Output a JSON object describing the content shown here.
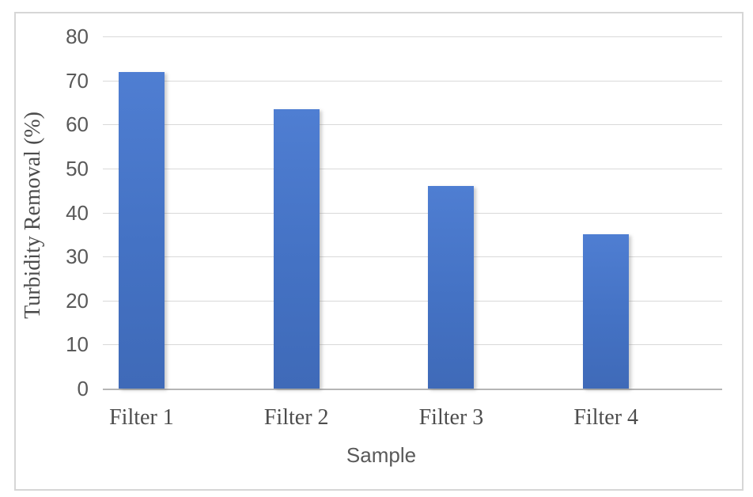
{
  "figure": {
    "background_color": "#ffffff",
    "frame_border_color": "#d6d6d6",
    "gridline_color": "#d9d9d9",
    "axis_line_color": "#b5b5b5",
    "text_color": "#595959",
    "bar_color": "#4472c4"
  },
  "chart_data": {
    "type": "bar",
    "title": "",
    "categories": [
      "Filter 1",
      "Filter 2",
      "Filter 3",
      "Filter 4"
    ],
    "values": [
      72,
      63.5,
      46,
      35
    ],
    "xlabel": "Sample",
    "ylabel": "Turbidity Removal (%)",
    "ylim": [
      0,
      80
    ],
    "yticks": [
      0,
      10,
      20,
      30,
      40,
      50,
      60,
      70,
      80
    ],
    "grid": "horizontal",
    "legend": "none"
  }
}
